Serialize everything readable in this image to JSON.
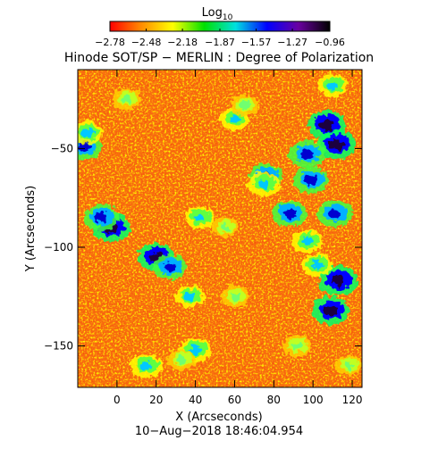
{
  "chart_data": {
    "type": "heatmap",
    "title": "Hinode SOT/SP − MERLIN : Degree of Polarization",
    "colorbar": {
      "label": "Log",
      "label_subscript": "10",
      "range": [
        -2.78,
        -0.96
      ],
      "tick_labels": [
        "−2.78",
        "−2.48",
        "−2.18",
        "−1.87",
        "−1.57",
        "−1.27",
        "−0.96"
      ],
      "tick_values": [
        -2.78,
        -2.48,
        -2.18,
        -1.87,
        -1.57,
        -1.27,
        -0.96
      ],
      "colormap": [
        "#ff0000",
        "#ff8c00",
        "#ffff00",
        "#00e000",
        "#00e0e0",
        "#0000ff",
        "#6a00a0",
        "#000000"
      ]
    },
    "xlabel": "X (Arcseconds)",
    "ylabel": "Y (Arcseconds)",
    "xlim": [
      -20,
      125
    ],
    "ylim": [
      -171,
      -10
    ],
    "x_ticks": [
      0,
      20,
      40,
      60,
      80,
      100,
      120
    ],
    "x_tick_labels": [
      "0",
      "20",
      "40",
      "60",
      "80",
      "100",
      "120"
    ],
    "y_ticks": [
      -50,
      -100,
      -150
    ],
    "y_tick_labels": [
      "−50",
      "−100",
      "−150"
    ],
    "background_level": -2.7,
    "features": [
      {
        "x": 107,
        "y": -38,
        "level": -1.3
      },
      {
        "x": 112,
        "y": -48,
        "level": -1.25
      },
      {
        "x": 97,
        "y": -53,
        "level": -1.4
      },
      {
        "x": 76,
        "y": -64,
        "level": -1.6
      },
      {
        "x": 75,
        "y": -68,
        "level": -1.7
      },
      {
        "x": 99,
        "y": -66,
        "level": -1.5
      },
      {
        "x": 88,
        "y": -83,
        "level": -1.5
      },
      {
        "x": 111,
        "y": -83,
        "level": -1.45
      },
      {
        "x": 113,
        "y": -117,
        "level": -1.2
      },
      {
        "x": 109,
        "y": -132,
        "level": -1.35
      },
      {
        "x": 102,
        "y": -109,
        "level": -1.8
      },
      {
        "x": 97,
        "y": -97,
        "level": -1.8
      },
      {
        "x": -17,
        "y": -49,
        "level": -1.45
      },
      {
        "x": -15,
        "y": -42,
        "level": -1.8
      },
      {
        "x": -3,
        "y": -90,
        "level": -1.3
      },
      {
        "x": -8,
        "y": -85,
        "level": -1.5
      },
      {
        "x": 20,
        "y": -105,
        "level": -1.35
      },
      {
        "x": 27,
        "y": -110,
        "level": -1.6
      },
      {
        "x": 37,
        "y": -125,
        "level": -1.9
      },
      {
        "x": 5,
        "y": -25,
        "level": -2.0
      },
      {
        "x": 40,
        "y": -152,
        "level": -1.7
      },
      {
        "x": 33,
        "y": -157,
        "level": -2.0
      },
      {
        "x": 15,
        "y": -160,
        "level": -1.7
      },
      {
        "x": 60,
        "y": -35,
        "level": -1.9
      },
      {
        "x": 65,
        "y": -28,
        "level": -2.0
      },
      {
        "x": 42,
        "y": -85,
        "level": -1.9
      },
      {
        "x": 55,
        "y": -90,
        "level": -2.1
      },
      {
        "x": 60,
        "y": -125,
        "level": -2.0
      },
      {
        "x": 110,
        "y": -18,
        "level": -1.9
      },
      {
        "x": 118,
        "y": -160,
        "level": -2.1
      },
      {
        "x": 92,
        "y": -150,
        "level": -2.0
      }
    ]
  },
  "footer": {
    "timestamp": "10−Aug−2018 18:46:04.954"
  }
}
